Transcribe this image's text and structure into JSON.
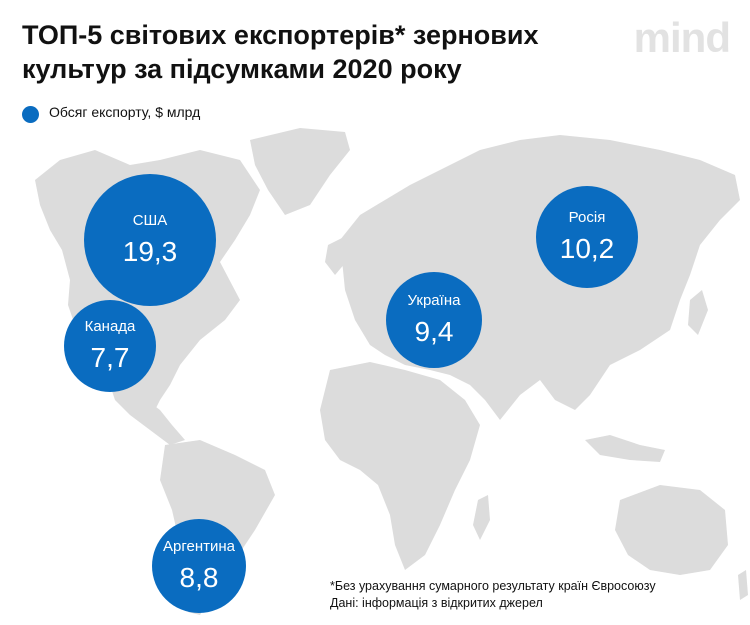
{
  "title": "ТОП-5 світових експортерів* зернових культур за підсумками 2020 року",
  "logo": "mind",
  "legend": {
    "label": "Обсяг експорту, $ млрд",
    "color": "#0a6cc0"
  },
  "colors": {
    "bubble": "#0a6cc0",
    "land": "#dcdcdc",
    "background": "#ffffff"
  },
  "map_data": {
    "type": "bubble-map",
    "points": [
      {
        "name": "США",
        "value": "19,3"
      },
      {
        "name": "Канада",
        "value": "7,7"
      },
      {
        "name": "Україна",
        "value": "9,4"
      },
      {
        "name": "Росія",
        "value": "10,2"
      },
      {
        "name": "Аргентина",
        "value": "8,8"
      }
    ]
  },
  "footnote": {
    "line1": "*Без урахування сумарного результату країн Євросоюзу",
    "line2": "Дані: інформація з відкритих джерел"
  }
}
